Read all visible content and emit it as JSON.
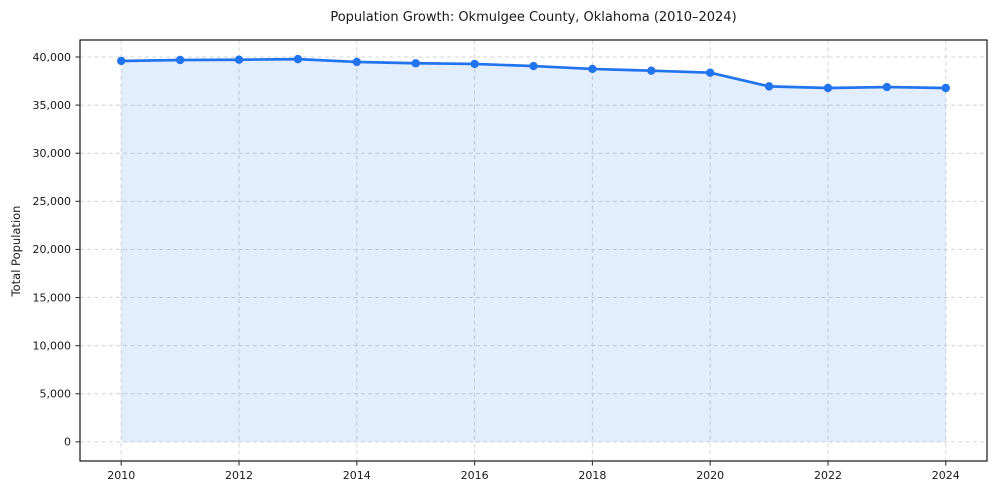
{
  "chart_data": {
    "type": "area",
    "title": "Population Growth: Okmulgee County, Oklahoma (2010–2024)",
    "xlabel": "",
    "ylabel": "Total Population",
    "x": [
      2010,
      2011,
      2012,
      2013,
      2014,
      2015,
      2016,
      2017,
      2018,
      2019,
      2020,
      2021,
      2022,
      2023,
      2024
    ],
    "series": [
      {
        "name": "Total Population",
        "values": [
          39590,
          39690,
          39720,
          39780,
          39490,
          39350,
          39280,
          39060,
          38760,
          38580,
          38370,
          36950,
          36780,
          36880,
          36780
        ]
      }
    ],
    "xticks": [
      2010,
      2012,
      2014,
      2016,
      2018,
      2020,
      2022,
      2024
    ],
    "yticks": [
      0,
      5000,
      10000,
      15000,
      20000,
      25000,
      30000,
      35000,
      40000
    ],
    "xlim": [
      2009.3,
      2024.7
    ],
    "ylim": [
      -1989,
      41769
    ],
    "grid": true,
    "grid_style": "dashed",
    "legend": false,
    "colors": {
      "line": "#2173ee",
      "marker": "#2173ee",
      "fill": "rgba(33,115,238,0.13)",
      "grid": "#d4d4d4",
      "axis_border": "#000000",
      "tick": "#333333",
      "text": "#1a1a1a",
      "background": "#ffffff"
    }
  }
}
